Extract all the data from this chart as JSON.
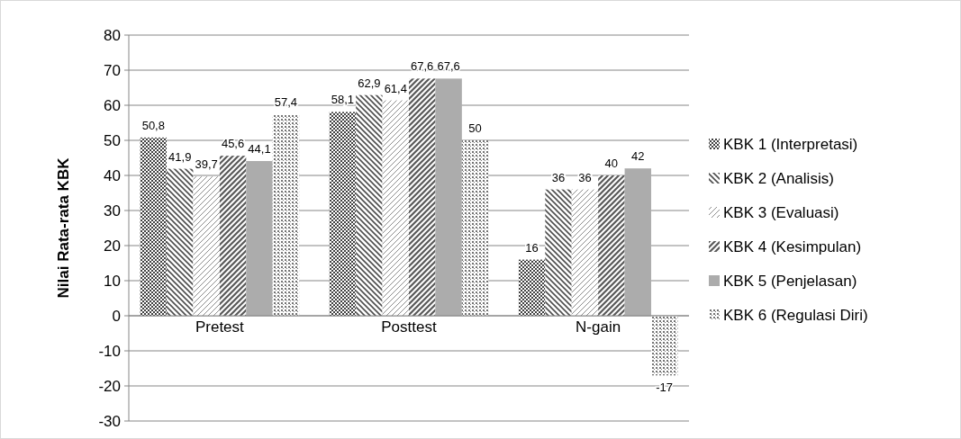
{
  "chart_data": {
    "type": "bar",
    "ylabel": "Nilai Rata-rata KBK",
    "categories": [
      "Pretest",
      "Posttest",
      "N-gain"
    ],
    "series": [
      {
        "name": "KBK 1 (Interpretasi)",
        "color": "#404040",
        "values": [
          50.8,
          58.1,
          16
        ],
        "value_labels": [
          "50,8",
          "58,1",
          "16"
        ]
      },
      {
        "name": "KBK 2 (Analisis)",
        "color": "#4d4d4d",
        "values": [
          41.9,
          62.9,
          36
        ],
        "value_labels": [
          "41,9",
          "62,9",
          "36"
        ]
      },
      {
        "name": "KBK 3 (Evaluasi)",
        "color": "#8c8c8c",
        "values": [
          39.7,
          61.4,
          36
        ],
        "value_labels": [
          "39,7",
          "61,4",
          "36"
        ]
      },
      {
        "name": "KBK 4 (Kesimpulan)",
        "color": "#595959",
        "values": [
          45.6,
          67.6,
          40
        ],
        "value_labels": [
          "45,6",
          "67,6",
          "40"
        ]
      },
      {
        "name": "KBK 5 (Penjelasan)",
        "color": "#595959",
        "values": [
          44.1,
          67.6,
          42
        ],
        "value_labels": [
          "44,1",
          "67,6",
          "42"
        ]
      },
      {
        "name": "KBK 6 (Regulasi Diri)",
        "color": "#737373",
        "values": [
          57.4,
          50,
          -17
        ],
        "value_labels": [
          "57,4",
          "50",
          "-17"
        ]
      }
    ],
    "ylim": [
      -30,
      80
    ],
    "yticks": [
      -30,
      -20,
      -10,
      0,
      10,
      20,
      30,
      40,
      50,
      60,
      70,
      80
    ],
    "grid": "y",
    "legend": "right"
  }
}
